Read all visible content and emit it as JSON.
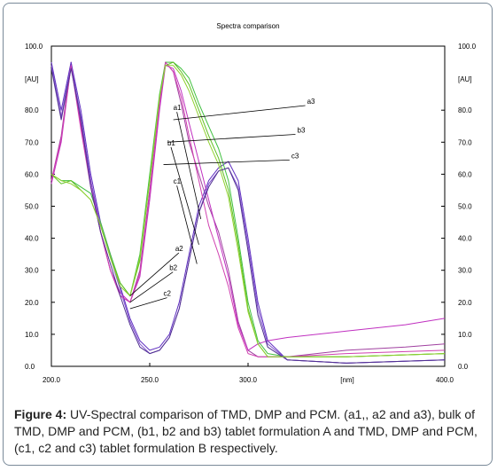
{
  "chart_data": {
    "type": "line",
    "title": "Spectra comparison",
    "xlabel": "[nm]",
    "ylabel_left": "[AU]",
    "ylabel_right": "[AU]",
    "xlim": [
      200,
      400
    ],
    "ylim": [
      0,
      100
    ],
    "x_ticks": [
      "200.0",
      "250.0",
      "300.0",
      "400.0"
    ],
    "y_ticks_left": [
      "100.0",
      "80.0",
      "70.0",
      "60.0",
      "50.0",
      "40.0",
      "30.0",
      "20.0",
      "10.0",
      "0.0"
    ],
    "y_ticks_right": [
      "100.0",
      "80.0",
      "70.0",
      "60.0",
      "50.0",
      "40.0",
      "30.0",
      "20.0",
      "10.0",
      "0.0"
    ],
    "grid": false,
    "series": [
      {
        "name": "a1",
        "color": "#a040a0",
        "x": [
          200,
          205,
          210,
          215,
          220,
          225,
          230,
          235,
          240,
          245,
          250,
          255,
          258,
          262,
          266,
          270,
          275,
          280,
          285,
          290,
          295,
          300,
          305,
          310,
          320,
          350,
          380,
          400
        ],
        "y": [
          58,
          72,
          95,
          76,
          58,
          42,
          30,
          22,
          20,
          30,
          55,
          82,
          95,
          92,
          82,
          70,
          60,
          50,
          42,
          30,
          14,
          5,
          3,
          3,
          3,
          5,
          6,
          7
        ]
      },
      {
        "name": "a2",
        "color": "#6030c0",
        "x": [
          200,
          205,
          210,
          215,
          220,
          225,
          230,
          235,
          240,
          245,
          250,
          255,
          260,
          265,
          270,
          275,
          280,
          285,
          290,
          295,
          300,
          305,
          310,
          320,
          350,
          400
        ],
        "y": [
          95,
          80,
          95,
          80,
          60,
          45,
          35,
          25,
          15,
          8,
          5,
          6,
          10,
          20,
          35,
          50,
          58,
          62,
          64,
          58,
          40,
          20,
          8,
          2,
          1,
          2
        ]
      },
      {
        "name": "a3",
        "color": "#40c040",
        "x": [
          200,
          205,
          210,
          215,
          220,
          225,
          230,
          235,
          240,
          245,
          250,
          255,
          258,
          262,
          266,
          270,
          275,
          280,
          285,
          290,
          295,
          300,
          305,
          310,
          320,
          350,
          400
        ],
        "y": [
          60,
          58,
          58,
          56,
          54,
          45,
          35,
          26,
          22,
          35,
          60,
          85,
          95,
          95,
          93,
          90,
          82,
          75,
          68,
          58,
          40,
          20,
          8,
          4,
          3,
          3,
          4
        ]
      },
      {
        "name": "b1",
        "color": "#c030c0",
        "x": [
          200,
          205,
          210,
          215,
          220,
          225,
          230,
          235,
          240,
          245,
          250,
          255,
          258,
          262,
          266,
          270,
          275,
          280,
          285,
          290,
          295,
          300,
          305,
          310,
          320,
          350,
          380,
          400
        ],
        "y": [
          57,
          70,
          94,
          75,
          58,
          42,
          30,
          23,
          20,
          28,
          52,
          80,
          94,
          93,
          86,
          76,
          64,
          52,
          40,
          28,
          13,
          5,
          7,
          8,
          9,
          11,
          13,
          15
        ]
      },
      {
        "name": "b2",
        "color": "#8050d0",
        "x": [
          200,
          205,
          210,
          215,
          220,
          225,
          230,
          235,
          240,
          245,
          250,
          255,
          260,
          265,
          270,
          275,
          280,
          285,
          290,
          295,
          300,
          305,
          310,
          320,
          350,
          400
        ],
        "y": [
          94,
          78,
          94,
          78,
          58,
          44,
          34,
          24,
          14,
          7,
          4,
          5,
          9,
          18,
          33,
          48,
          57,
          61,
          62,
          56,
          38,
          18,
          7,
          2,
          1,
          2
        ]
      },
      {
        "name": "b3",
        "color": "#60c020",
        "x": [
          200,
          205,
          210,
          215,
          220,
          225,
          230,
          235,
          240,
          245,
          250,
          255,
          258,
          262,
          266,
          270,
          275,
          280,
          285,
          290,
          295,
          300,
          305,
          310,
          320,
          350,
          400
        ],
        "y": [
          60,
          57,
          58,
          55,
          52,
          44,
          34,
          26,
          22,
          33,
          58,
          84,
          94,
          95,
          92,
          88,
          80,
          72,
          65,
          55,
          38,
          18,
          7,
          3,
          3,
          3,
          4
        ]
      },
      {
        "name": "c1",
        "color": "#d040b0",
        "x": [
          200,
          205,
          210,
          215,
          220,
          225,
          230,
          235,
          240,
          245,
          250,
          255,
          258,
          262,
          266,
          270,
          275,
          280,
          285,
          290,
          295,
          300,
          305,
          310,
          320,
          350,
          400
        ],
        "y": [
          58,
          71,
          94,
          74,
          56,
          42,
          30,
          22,
          20,
          29,
          54,
          82,
          95,
          92,
          84,
          72,
          58,
          44,
          35,
          25,
          12,
          4,
          3,
          3,
          3,
          4,
          5
        ]
      },
      {
        "name": "c2",
        "color": "#503090",
        "x": [
          200,
          205,
          210,
          215,
          220,
          225,
          230,
          235,
          240,
          245,
          250,
          255,
          260,
          265,
          270,
          275,
          280,
          285,
          290,
          295,
          300,
          305,
          310,
          320,
          350,
          400
        ],
        "y": [
          93,
          77,
          93,
          77,
          56,
          42,
          32,
          22,
          13,
          6,
          4,
          5,
          9,
          18,
          33,
          48,
          56,
          61,
          62,
          55,
          36,
          16,
          6,
          2,
          1,
          2
        ]
      },
      {
        "name": "c3",
        "color": "#90d030",
        "x": [
          200,
          205,
          210,
          215,
          220,
          225,
          230,
          235,
          240,
          245,
          250,
          255,
          258,
          262,
          266,
          270,
          275,
          280,
          285,
          290,
          295,
          300,
          305,
          310,
          320,
          350,
          400
        ],
        "y": [
          60,
          58,
          57,
          55,
          52,
          44,
          34,
          25,
          22,
          34,
          58,
          84,
          94,
          94,
          91,
          86,
          78,
          70,
          63,
          53,
          36,
          17,
          7,
          3,
          3,
          3,
          4
        ]
      }
    ],
    "annotations": [
      {
        "text": "a3",
        "x": 330,
        "y": 82
      },
      {
        "text": "b3",
        "x": 325,
        "y": 73
      },
      {
        "text": "c3",
        "x": 322,
        "y": 65
      },
      {
        "text": "a1",
        "x": 262,
        "y": 80
      },
      {
        "text": "b1",
        "x": 259,
        "y": 69
      },
      {
        "text": "c1",
        "x": 262,
        "y": 57
      },
      {
        "text": "a2",
        "x": 263,
        "y": 36
      },
      {
        "text": "b2",
        "x": 260,
        "y": 30
      },
      {
        "text": "c2",
        "x": 257,
        "y": 22
      }
    ]
  },
  "caption": {
    "label": "Figure 4:",
    "text": " UV-Spectral comparison of TMD, DMP and PCM. (a1,, a2 and a3), bulk of TMD, DMP and PCM, (b1, b2 and b3) tablet formulation A and TMD, DMP and PCM, (c1, c2 and c3) tablet formulation B respectively."
  }
}
